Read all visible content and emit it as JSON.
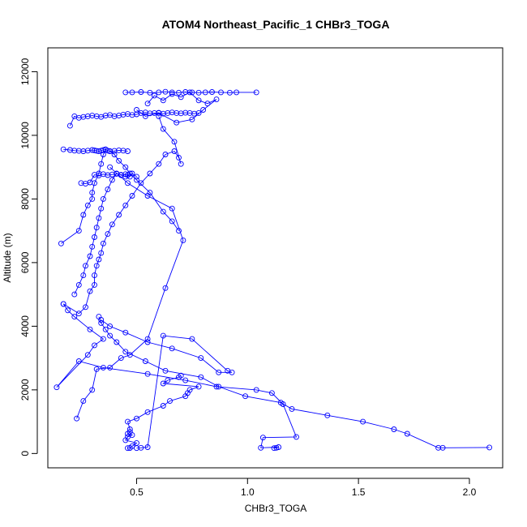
{
  "chart_data": {
    "type": "line",
    "title": "ATOM4 Northeast_Pacific_1 CHBr3_TOGA",
    "xlabel": "CHBr3_TOGA",
    "ylabel": "Altitude (m)",
    "xlim": [
      0.1,
      2.15
    ],
    "ylim": [
      -450,
      12750
    ],
    "x_ticks": [
      0.5,
      1.0,
      1.5,
      2.0
    ],
    "x_tick_labels": [
      "0.5",
      "1.0",
      "1.5",
      "2.0"
    ],
    "y_ticks": [
      0,
      2000,
      4000,
      6000,
      8000,
      10000,
      12000
    ],
    "y_tick_labels": [
      "0",
      "2000",
      "4000",
      "6000",
      "8000",
      "10000",
      "12000"
    ],
    "grid": false,
    "legend": "none",
    "line_color": "#0000ff",
    "marker": "open-circle",
    "series": [
      {
        "x": [
          0.46,
          0.47,
          0.48,
          0.5,
          0.45,
          0.46,
          0.48,
          0.46,
          0.47,
          0.47,
          0.46,
          0.5,
          0.55,
          0.62,
          0.65,
          0.72,
          0.73,
          0.74,
          0.78,
          0.62,
          0.64,
          0.69,
          0.7
        ],
        "y": [
          170,
          175,
          230,
          330,
          420,
          520,
          580,
          620,
          680,
          760,
          1000,
          1100,
          1300,
          1500,
          1650,
          1800,
          1900,
          2000,
          2100,
          2200,
          2300,
          2400,
          2450
        ]
      },
      {
        "x": [
          2.09,
          1.88,
          1.86,
          1.72,
          1.66,
          1.52,
          1.36,
          1.2,
          1.15,
          0.99,
          0.87,
          0.79,
          0.63,
          0.54,
          0.45,
          0.41,
          0.38,
          0.36,
          0.34,
          0.33
        ],
        "y": [
          190,
          180,
          180,
          620,
          760,
          1000,
          1200,
          1400,
          1600,
          1800,
          2100,
          2400,
          2600,
          2900,
          3200,
          3500,
          3700,
          3900,
          4100,
          4300
        ]
      },
      {
        "x": [
          1.12,
          1.13,
          1.14,
          1.06,
          1.07,
          1.22,
          1.16,
          1.11,
          1.04,
          0.86,
          0.72,
          0.55,
          0.35,
          0.24,
          0.14,
          0.28,
          0.31,
          0.35,
          0.29,
          0.22,
          0.19,
          0.17
        ],
        "y": [
          170,
          180,
          200,
          180,
          500,
          520,
          1550,
          1900,
          2000,
          2100,
          2300,
          2500,
          2700,
          2900,
          2080,
          3100,
          3400,
          3600,
          3900,
          4300,
          4500,
          4700
        ]
      },
      {
        "x": [
          0.5,
          0.52,
          0.55,
          0.62,
          0.75,
          0.91,
          0.93,
          0.87,
          0.79,
          0.66,
          0.55,
          0.45,
          0.38,
          0.34
        ],
        "y": [
          170,
          180,
          200,
          3700,
          3600,
          2600,
          2550,
          2550,
          3000,
          3300,
          3500,
          3800,
          4000,
          4200
        ]
      },
      {
        "x": [
          0.23,
          0.26,
          0.3,
          0.32,
          0.38,
          0.43,
          0.47,
          0.55,
          0.63,
          0.71,
          0.66,
          0.55,
          0.46,
          0.38
        ],
        "y": [
          1100,
          1650,
          2000,
          2650,
          2700,
          3000,
          3100,
          3600,
          5200,
          6700,
          7700,
          8100,
          8500,
          9000
        ]
      },
      {
        "x": [
          0.17,
          0.24,
          0.27,
          0.29,
          0.31,
          0.31,
          0.32,
          0.33,
          0.34,
          0.35,
          0.37,
          0.39,
          0.42,
          0.45,
          0.48,
          0.52,
          0.56,
          0.6,
          0.63,
          0.67,
          0.69,
          0.7,
          0.67,
          0.62,
          0.6
        ],
        "y": [
          4700,
          4400,
          4600,
          5100,
          5300,
          5600,
          5900,
          6100,
          6300,
          6600,
          6900,
          7200,
          7500,
          7800,
          8100,
          8500,
          8800,
          9100,
          9400,
          9500,
          9300,
          9100,
          9800,
          10200,
          10600
        ]
      },
      {
        "x": [
          0.16,
          0.24,
          0.26,
          0.28,
          0.3,
          0.3,
          0.31,
          0.33,
          0.34,
          0.35,
          0.36,
          0.38,
          0.4,
          0.42,
          0.45,
          0.47,
          0.5,
          0.56,
          0.62,
          0.66,
          0.69
        ],
        "y": [
          6600,
          7000,
          7500,
          7800,
          8000,
          8200,
          8500,
          8800,
          9100,
          9400,
          9550,
          9500,
          9400,
          9200,
          9000,
          8800,
          8600,
          8200,
          7600,
          7300,
          7000
        ]
      },
      {
        "x": [
          0.22,
          0.24,
          0.26,
          0.27,
          0.29,
          0.3,
          0.31,
          0.32,
          0.33,
          0.34,
          0.35,
          0.37,
          0.39,
          0.41,
          0.43,
          0.45,
          0.46,
          0.48,
          0.5
        ],
        "y": [
          5000,
          5300,
          5600,
          5900,
          6200,
          6500,
          6800,
          7100,
          7400,
          7700,
          8000,
          8300,
          8600,
          8800,
          8750,
          8700,
          8750,
          8800,
          8700
        ]
      },
      {
        "x": [
          0.17,
          0.2,
          0.22,
          0.24,
          0.26,
          0.28,
          0.3,
          0.31,
          0.32,
          0.33,
          0.34,
          0.35,
          0.36,
          0.37,
          0.38,
          0.4,
          0.42,
          0.44,
          0.46
        ],
        "y": [
          9560,
          9540,
          9520,
          9510,
          9500,
          9520,
          9540,
          9530,
          9510,
          9500,
          9520,
          9540,
          9560,
          9520,
          9500,
          9510,
          9530,
          9520,
          9500
        ]
      },
      {
        "x": [
          0.2,
          0.22,
          0.24,
          0.26,
          0.28,
          0.3,
          0.32,
          0.34,
          0.36,
          0.38,
          0.4,
          0.42,
          0.44,
          0.46,
          0.48,
          0.5,
          0.52,
          0.54,
          0.56,
          0.58,
          0.6,
          0.62,
          0.64,
          0.66,
          0.68,
          0.7,
          0.72,
          0.74,
          0.76,
          0.78
        ],
        "y": [
          10300,
          10600,
          10550,
          10580,
          10600,
          10620,
          10600,
          10580,
          10620,
          10640,
          10600,
          10620,
          10650,
          10670,
          10640,
          10660,
          10700,
          10720,
          10690,
          10700,
          10710,
          10680,
          10700,
          10720,
          10700,
          10690,
          10710,
          10700,
          10680,
          10700
        ]
      },
      {
        "x": [
          0.45,
          0.48,
          0.52,
          0.56,
          0.6,
          0.63,
          0.66,
          0.69,
          0.72,
          0.75,
          0.78,
          0.81,
          0.84,
          0.88,
          0.92,
          0.95,
          1.04
        ],
        "y": [
          11350,
          11350,
          11360,
          11340,
          11350,
          11370,
          11350,
          11340,
          11360,
          11350,
          11340,
          11350,
          11360,
          11350,
          11340,
          11350,
          11350
        ]
      },
      {
        "x": [
          0.55,
          0.58,
          0.62,
          0.66,
          0.7,
          0.74,
          0.78,
          0.82,
          0.86,
          0.8,
          0.75,
          0.68,
          0.6,
          0.54,
          0.5
        ],
        "y": [
          11000,
          11250,
          11100,
          11300,
          11200,
          11350,
          11100,
          11000,
          11130,
          10800,
          10500,
          10400,
          10700,
          10600,
          10800
        ]
      },
      {
        "x": [
          0.25,
          0.27,
          0.29,
          0.31,
          0.33,
          0.35,
          0.37,
          0.39,
          0.41,
          0.43,
          0.45,
          0.47
        ],
        "y": [
          8500,
          8480,
          8520,
          8760,
          8740,
          8780,
          8750,
          8770,
          8790,
          8760,
          8780,
          8700
        ]
      }
    ]
  }
}
